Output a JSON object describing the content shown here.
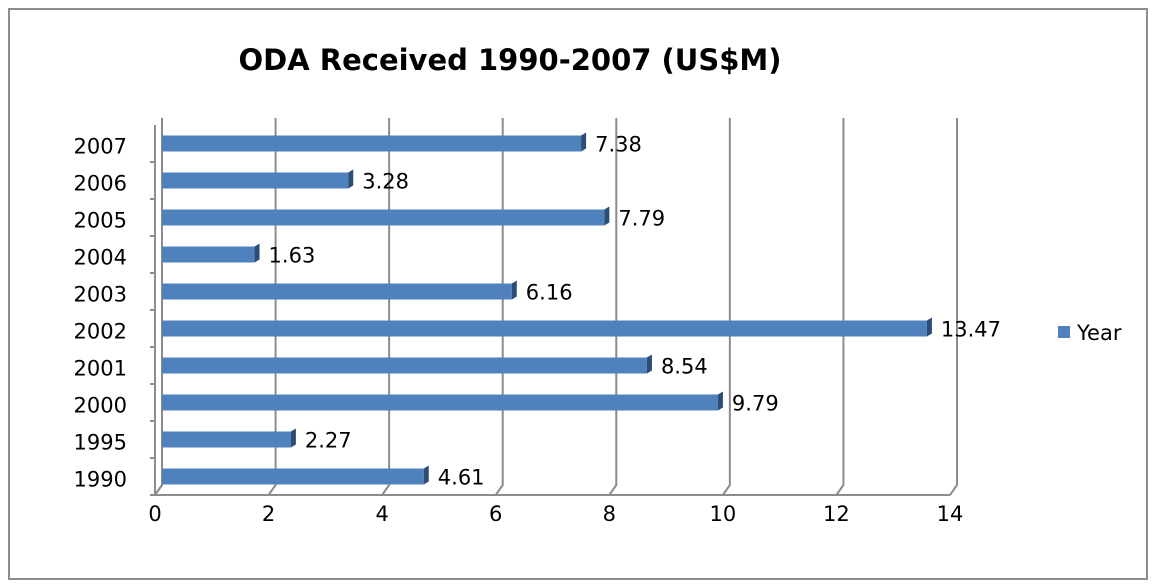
{
  "chart_data": {
    "type": "bar",
    "orientation": "horizontal",
    "title": "ODA Received 1990-2007 (US$M)",
    "categories": [
      "1990",
      "1995",
      "2000",
      "2001",
      "2002",
      "2003",
      "2004",
      "2005",
      "2006",
      "2007"
    ],
    "series": [
      {
        "name": "Year",
        "color": "#4f81bd",
        "values": [
          4.61,
          2.27,
          9.79,
          8.54,
          13.47,
          6.16,
          1.63,
          7.79,
          3.28,
          7.38
        ]
      }
    ],
    "xlim": [
      0,
      14
    ],
    "xticks": [
      0,
      2,
      4,
      6,
      8,
      10,
      12,
      14
    ],
    "grid": true,
    "legend": "right"
  }
}
